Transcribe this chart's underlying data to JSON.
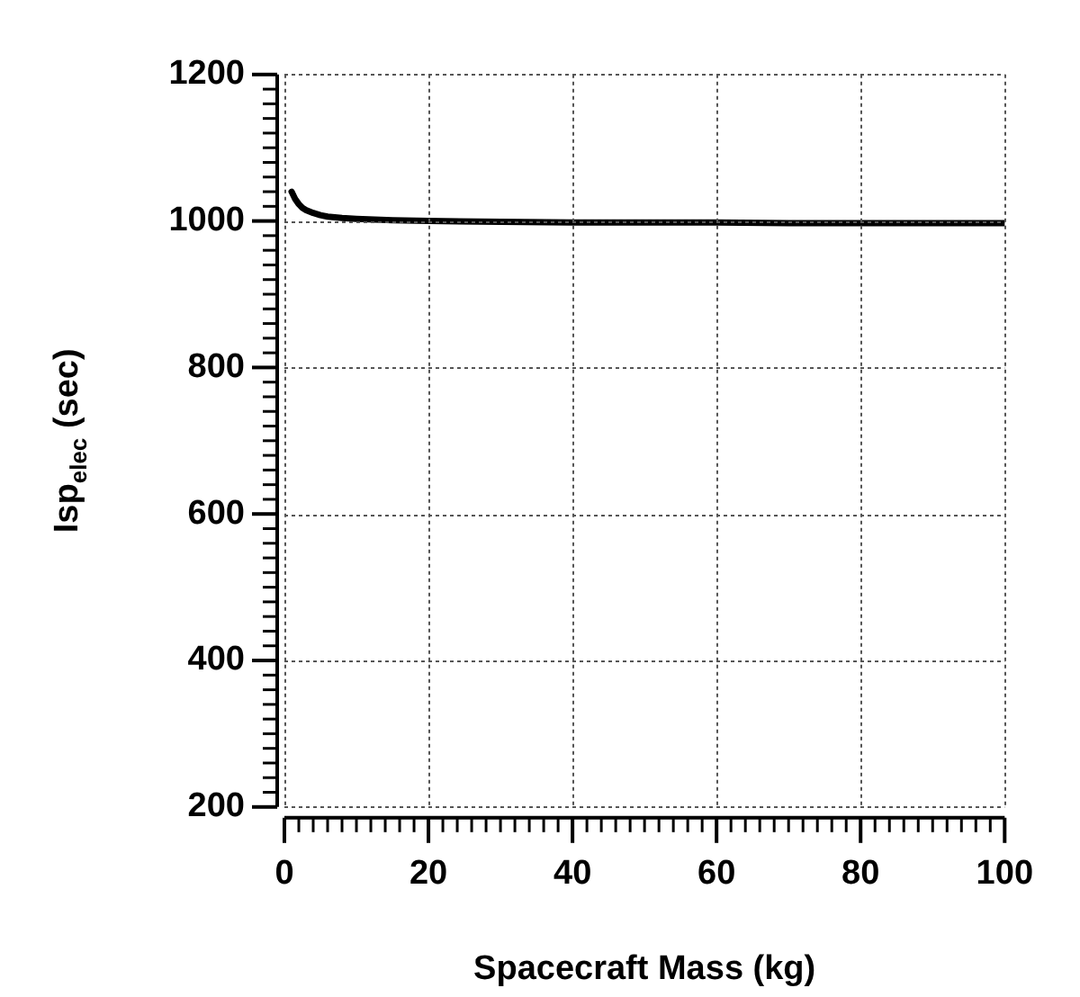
{
  "chart_data": {
    "type": "line",
    "xlabel": "Spacecraft Mass (kg)",
    "ylabel": "Isp$_{elec}$ (sec)",
    "x": [
      1,
      1.5,
      2,
      2.5,
      3,
      4,
      5,
      6,
      8,
      10,
      15,
      20,
      30,
      40,
      50,
      60,
      70,
      80,
      90,
      100
    ],
    "series": [
      {
        "color": "#000000",
        "values": [
          1040,
          1030,
          1023,
          1018,
          1015,
          1011,
          1008,
          1006,
          1004,
          1003,
          1001,
          1000,
          999,
          998,
          998,
          998,
          997,
          997,
          997,
          997
        ]
      }
    ],
    "xlim": [
      0,
      100
    ],
    "ylim": [
      200,
      1200
    ],
    "xticks": [
      0,
      {
        "value": 2,
        "label": null
      },
      {
        "value": 4,
        "label": null
      },
      {
        "value": 6,
        "label": null
      },
      {
        "value": 8,
        "label": null
      },
      {
        "value": 10,
        "label": null
      },
      {
        "value": 12,
        "label": null
      },
      {
        "value": 14,
        "label": null
      },
      {
        "value": 16,
        "label": null
      },
      {
        "value": 18,
        "label": null
      },
      20,
      {
        "value": 22,
        "label": null
      },
      {
        "value": 24,
        "label": null
      },
      {
        "value": 26,
        "label": null
      },
      {
        "value": 28,
        "label": null
      },
      {
        "value": 30,
        "label": null
      },
      {
        "value": 32,
        "label": null
      },
      {
        "value": 34,
        "label": null
      },
      {
        "value": 36,
        "label": null
      },
      {
        "value": 38,
        "label": null
      },
      40,
      {
        "value": 42,
        "label": null
      },
      {
        "value": 44,
        "label": null
      },
      {
        "value": 46,
        "label": null
      },
      {
        "value": 48,
        "label": null
      },
      {
        "value": 50,
        "label": null
      },
      {
        "value": 52,
        "label": null
      },
      {
        "value": 54,
        "label": null
      },
      {
        "value": 56,
        "label": null
      },
      {
        "value": 58,
        "label": null
      },
      60,
      {
        "value": 62,
        "label": null
      },
      {
        "value": 64,
        "label": null
      },
      {
        "value": 66,
        "label": null
      },
      {
        "value": 68,
        "label": null
      },
      {
        "value": 70,
        "label": null
      },
      {
        "value": 72,
        "label": null
      },
      {
        "value": 74,
        "label": null
      },
      {
        "value": 76,
        "label": null
      },
      {
        "value": 78,
        "label": null
      },
      80,
      {
        "value": 82,
        "label": null
      },
      {
        "value": 84,
        "label": null
      },
      {
        "value": 86,
        "label": null
      },
      {
        "value": 88,
        "label": null
      },
      {
        "value": 90,
        "label": null
      },
      {
        "value": 92,
        "label": null
      },
      {
        "value": 94,
        "label": null
      },
      {
        "value": 96,
        "label": null
      },
      {
        "value": 98,
        "label": null
      },
      100
    ],
    "yticks": [
      200,
      {
        "value": 220,
        "label": null
      },
      {
        "value": 240,
        "label": null
      },
      {
        "value": 260,
        "label": null
      },
      {
        "value": 280,
        "label": null
      },
      {
        "value": 300,
        "label": null
      },
      {
        "value": 320,
        "label": null
      },
      {
        "value": 340,
        "label": null
      },
      {
        "value": 360,
        "label": null
      },
      {
        "value": 380,
        "label": null
      },
      400,
      {
        "value": 420,
        "label": null
      },
      {
        "value": 440,
        "label": null
      },
      {
        "value": 460,
        "label": null
      },
      {
        "value": 480,
        "label": null
      },
      {
        "value": 500,
        "label": null
      },
      {
        "value": 520,
        "label": null
      },
      {
        "value": 540,
        "label": null
      },
      {
        "value": 560,
        "label": null
      },
      {
        "value": 580,
        "label": null
      },
      600,
      {
        "value": 620,
        "label": null
      },
      {
        "value": 640,
        "label": null
      },
      {
        "value": 660,
        "label": null
      },
      {
        "value": 680,
        "label": null
      },
      {
        "value": 700,
        "label": null
      },
      {
        "value": 720,
        "label": null
      },
      {
        "value": 740,
        "label": null
      },
      {
        "value": 760,
        "label": null
      },
      {
        "value": 780,
        "label": null
      },
      800,
      {
        "value": 820,
        "label": null
      },
      {
        "value": 840,
        "label": null
      },
      {
        "value": 860,
        "label": null
      },
      {
        "value": 880,
        "label": null
      },
      {
        "value": 900,
        "label": null
      },
      {
        "value": 920,
        "label": null
      },
      {
        "value": 940,
        "label": null
      },
      {
        "value": 960,
        "label": null
      },
      {
        "value": 980,
        "label": null
      },
      1000,
      {
        "value": 1020,
        "label": null
      },
      {
        "value": 1040,
        "label": null
      },
      {
        "value": 1060,
        "label": null
      },
      {
        "value": 1080,
        "label": null
      },
      {
        "value": 1100,
        "label": null
      },
      {
        "value": 1120,
        "label": null
      },
      {
        "value": 1140,
        "label": null
      },
      {
        "value": 1160,
        "label": null
      },
      {
        "value": 1180,
        "label": null
      },
      1200
    ],
    "grid": true,
    "legend": false,
    "marker": "none",
    "line_style": "solid"
  }
}
